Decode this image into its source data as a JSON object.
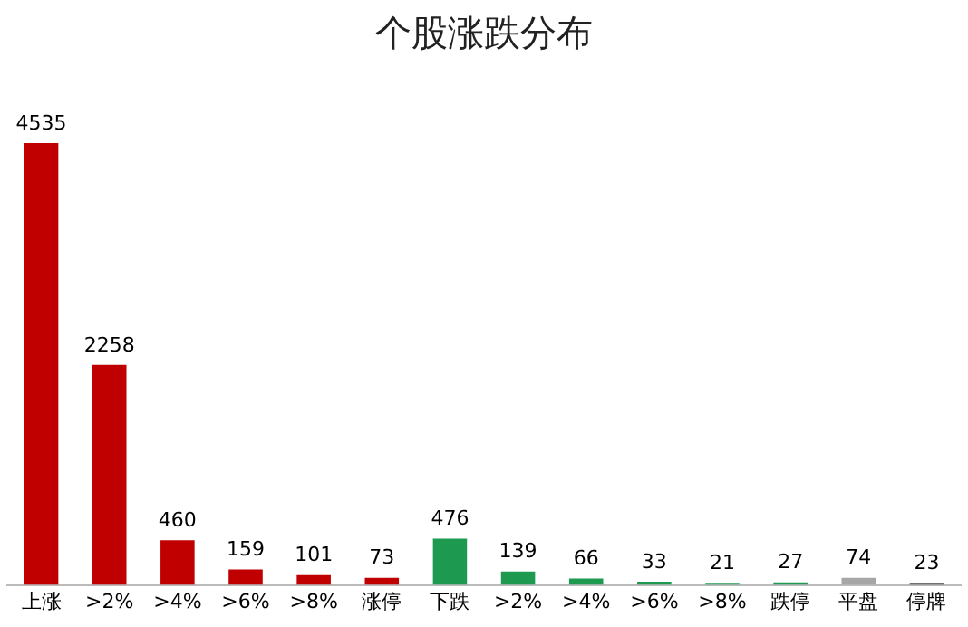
{
  "chart_data": {
    "type": "bar",
    "title": "个股涨跌分布",
    "categories": [
      "上涨",
      ">2%",
      ">4%",
      ">6%",
      ">8%",
      "涨停",
      "下跌",
      ">2%",
      ">4%",
      ">6%",
      ">8%",
      "跌停",
      "平盘",
      "停牌"
    ],
    "values": [
      4535,
      2258,
      460,
      159,
      101,
      73,
      476,
      139,
      66,
      33,
      21,
      27,
      74,
      23
    ],
    "colors": [
      "#c00000",
      "#c00000",
      "#c00000",
      "#c00000",
      "#c00000",
      "#c00000",
      "#1e9a50",
      "#1e9a50",
      "#1e9a50",
      "#1e9a50",
      "#1e9a50",
      "#1e9a50",
      "#a6a6a6",
      "#404040"
    ],
    "data_labels": true,
    "grid": false,
    "legend": false
  }
}
